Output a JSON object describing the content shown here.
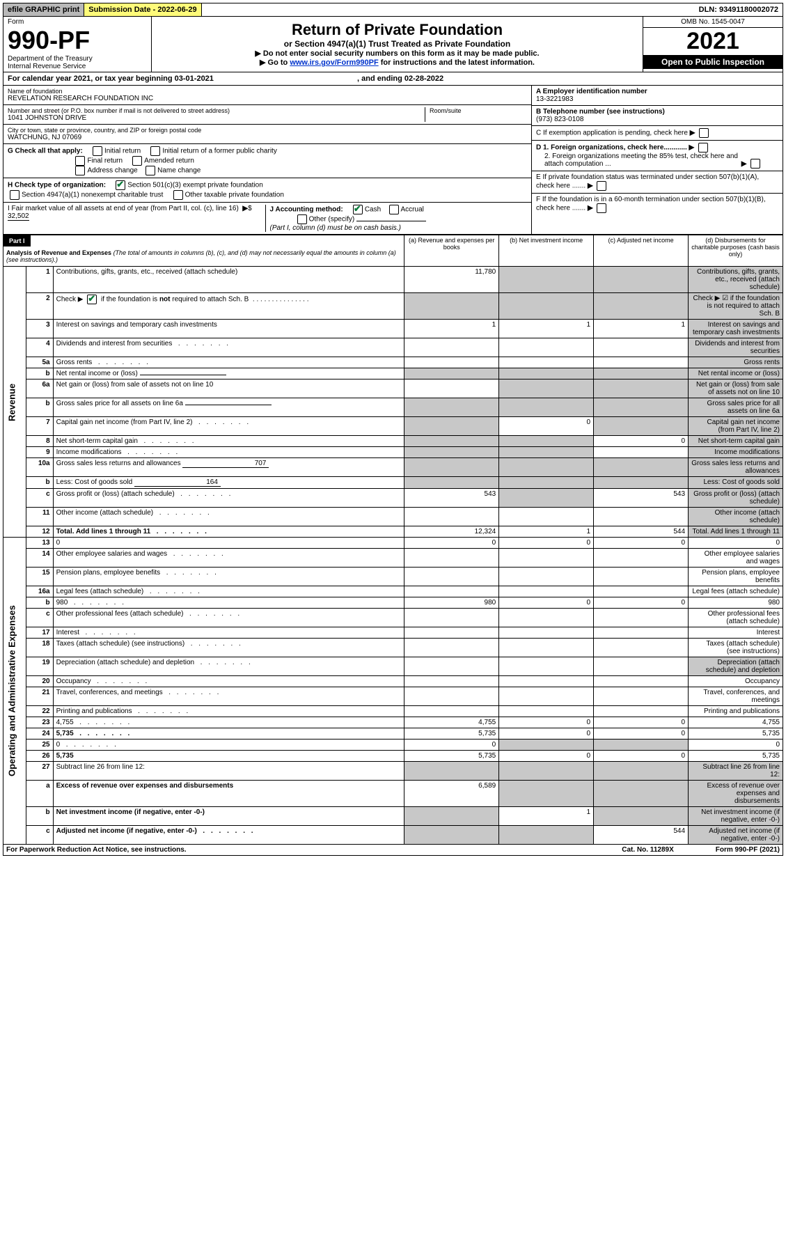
{
  "top": {
    "efile": "efile GRAPHIC print",
    "sub_label": "Submission Date - 2022-06-29",
    "dln": "DLN: 93491180002072"
  },
  "header": {
    "form_word": "Form",
    "form_no": "990-PF",
    "dept": "Department of the Treasury",
    "irs": "Internal Revenue Service",
    "title": "Return of Private Foundation",
    "subtitle": "or Section 4947(a)(1) Trust Treated as Private Foundation",
    "instr1": "▶ Do not enter social security numbers on this form as it may be made public.",
    "instr2_pre": "▶ Go to ",
    "instr2_link": "www.irs.gov/Form990PF",
    "instr2_post": " for instructions and the latest information.",
    "omb": "OMB No. 1545-0047",
    "year": "2021",
    "open": "Open to Public Inspection"
  },
  "cal": "For calendar year 2021, or tax year beginning 03-01-2021",
  "cal_end_lbl": ", and ending ",
  "cal_end": "02-28-2022",
  "entity": {
    "name_lbl": "Name of foundation",
    "name": "REVELATION RESEARCH FOUNDATION INC",
    "addr_lbl": "Number and street (or P.O. box number if mail is not delivered to street address)",
    "addr": "1041 JOHNSTON DRIVE",
    "room_lbl": "Room/suite",
    "city_lbl": "City or town, state or province, country, and ZIP or foreign postal code",
    "city": "WATCHUNG, NJ  07069",
    "ein_lbl": "A Employer identification number",
    "ein": "13-3221983",
    "tel_lbl": "B Telephone number (see instructions)",
    "tel": "(973) 823-0108",
    "c_lbl": "C If exemption application is pending, check here",
    "d1": "D 1. Foreign organizations, check here............",
    "d2": "2. Foreign organizations meeting the 85% test, check here and attach computation ...",
    "e": "E  If private foundation status was terminated under section 507(b)(1)(A), check here .......",
    "f": "F  If the foundation is in a 60-month termination under section 507(b)(1)(B), check here .......",
    "g_lbl": "G Check all that apply:",
    "g_opts": [
      "Initial return",
      "Initial return of a former public charity",
      "Final return",
      "Amended return",
      "Address change",
      "Name change"
    ],
    "h_lbl": "H Check type of organization:",
    "h_501c3": "Section 501(c)(3) exempt private foundation",
    "h_4947": "Section 4947(a)(1) nonexempt charitable trust",
    "h_other": "Other taxable private foundation",
    "i_lbl": "I Fair market value of all assets at end of year (from Part II, col. (c), line 16)",
    "i_val": "32,502",
    "j_lbl": "J Accounting method:",
    "j_cash": "Cash",
    "j_accr": "Accrual",
    "j_other": "Other (specify)",
    "j_note": "(Part I, column (d) must be on cash basis.)"
  },
  "part1": {
    "label": "Part I",
    "title": "Analysis of Revenue and Expenses",
    "note": " (The total of amounts in columns (b), (c), and (d) may not necessarily equal the amounts in column (a) (see instructions).)",
    "col_a": "(a)   Revenue and expenses per books",
    "col_b": "(b)   Net investment income",
    "col_c": "(c)   Adjusted net income",
    "col_d": "(d)  Disbursements for charitable purposes (cash basis only)"
  },
  "side": {
    "rev": "Revenue",
    "ops": "Operating and Administrative Expenses"
  },
  "rows": [
    {
      "n": "1",
      "d": "Contributions, gifts, grants, etc., received (attach schedule)",
      "a": "11,780",
      "b_sh": true,
      "c_sh": true,
      "d_sh": true
    },
    {
      "n": "2",
      "d": "Check ▶ ☑ if the foundation is not required to attach Sch. B",
      "dots": false,
      "a_sh": true,
      "b_sh": true,
      "c_sh": true,
      "d_sh": true,
      "bold_not": true
    },
    {
      "n": "3",
      "d": "Interest on savings and temporary cash investments",
      "a": "1",
      "b": "1",
      "c": "1",
      "d_sh": true
    },
    {
      "n": "4",
      "d": "Dividends and interest from securities",
      "dots": true,
      "d_sh": true
    },
    {
      "n": "5a",
      "d": "Gross rents",
      "dots": true,
      "d_sh": true
    },
    {
      "n": "b",
      "d": "Net rental income or (loss)",
      "inline": "",
      "a_sh": true,
      "b_sh": true,
      "c_sh": true,
      "d_sh": true
    },
    {
      "n": "6a",
      "d": "Net gain or (loss) from sale of assets not on line 10",
      "b_sh": true,
      "c_sh": true,
      "d_sh": true
    },
    {
      "n": "b",
      "d": "Gross sales price for all assets on line 6a",
      "inline": "",
      "a_sh": true,
      "b_sh": true,
      "c_sh": true,
      "d_sh": true
    },
    {
      "n": "7",
      "d": "Capital gain net income (from Part IV, line 2)",
      "dots": true,
      "a_sh": true,
      "b": "0",
      "c_sh": true,
      "d_sh": true
    },
    {
      "n": "8",
      "d": "Net short-term capital gain",
      "dots": true,
      "a_sh": true,
      "b_sh": true,
      "c": "0",
      "d_sh": true
    },
    {
      "n": "9",
      "d": "Income modifications",
      "dots": true,
      "a_sh": true,
      "b_sh": true,
      "d_sh": true
    },
    {
      "n": "10a",
      "d": "Gross sales less returns and allowances",
      "inline": "707",
      "a_sh": true,
      "b_sh": true,
      "c_sh": true,
      "d_sh": true
    },
    {
      "n": "b",
      "d": "Less: Cost of goods sold",
      "dots": true,
      "inline": "164",
      "a_sh": true,
      "b_sh": true,
      "c_sh": true,
      "d_sh": true
    },
    {
      "n": "c",
      "d": "Gross profit or (loss) (attach schedule)",
      "dots": true,
      "a": "543",
      "b_sh": true,
      "c": "543",
      "d_sh": true
    },
    {
      "n": "11",
      "d": "Other income (attach schedule)",
      "dots": true,
      "d_sh": true
    },
    {
      "n": "12",
      "d": "Total. Add lines 1 through 11",
      "dots": true,
      "bold": true,
      "a": "12,324",
      "b": "1",
      "c": "544",
      "d_sh": true
    },
    {
      "n": "13",
      "d": "0",
      "a": "0",
      "b": "0",
      "c": "0"
    },
    {
      "n": "14",
      "d": "Other employee salaries and wages",
      "dots": true
    },
    {
      "n": "15",
      "d": "Pension plans, employee benefits",
      "dots": true
    },
    {
      "n": "16a",
      "d": "Legal fees (attach schedule)",
      "dots": true
    },
    {
      "n": "b",
      "d": "980",
      "dots": true,
      "a": "980",
      "b": "0",
      "c": "0"
    },
    {
      "n": "c",
      "d": "Other professional fees (attach schedule)",
      "dots": true
    },
    {
      "n": "17",
      "d": "Interest",
      "dots": true
    },
    {
      "n": "18",
      "d": "Taxes (attach schedule) (see instructions)",
      "dots": true
    },
    {
      "n": "19",
      "d": "Depreciation (attach schedule) and depletion",
      "dots": true,
      "d_sh": true
    },
    {
      "n": "20",
      "d": "Occupancy",
      "dots": true
    },
    {
      "n": "21",
      "d": "Travel, conferences, and meetings",
      "dots": true
    },
    {
      "n": "22",
      "d": "Printing and publications",
      "dots": true
    },
    {
      "n": "23",
      "d": "4,755",
      "dots": true,
      "a": "4,755",
      "b": "0",
      "c": "0"
    },
    {
      "n": "24",
      "d": "5,735",
      "dots": true,
      "bold": true,
      "a": "5,735",
      "b": "0",
      "c": "0"
    },
    {
      "n": "25",
      "d": "0",
      "dots": true,
      "a": "0",
      "b_sh": true,
      "c_sh": true
    },
    {
      "n": "26",
      "d": "5,735",
      "bold": true,
      "a": "5,735",
      "b": "0",
      "c": "0"
    },
    {
      "n": "27",
      "d": "Subtract line 26 from line 12:",
      "a_sh": true,
      "b_sh": true,
      "c_sh": true,
      "d_sh": true
    },
    {
      "n": "a",
      "d": "Excess of revenue over expenses and disbursements",
      "bold": true,
      "a": "6,589",
      "b_sh": true,
      "c_sh": true,
      "d_sh": true
    },
    {
      "n": "b",
      "d": "Net investment income (if negative, enter -0-)",
      "bold": true,
      "a_sh": true,
      "b": "1",
      "c_sh": true,
      "d_sh": true
    },
    {
      "n": "c",
      "d": "Adjusted net income (if negative, enter -0-)",
      "bold": true,
      "dots": true,
      "a_sh": true,
      "b_sh": true,
      "c": "544",
      "d_sh": true
    }
  ],
  "footer": {
    "pra": "For Paperwork Reduction Act Notice, see instructions.",
    "cat": "Cat. No. 11289X",
    "form": "Form 990-PF (2021)"
  }
}
